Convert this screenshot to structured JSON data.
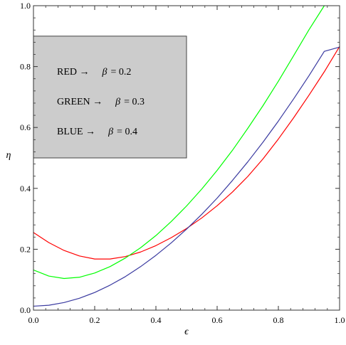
{
  "chart_data": {
    "type": "line",
    "xlabel": "ϵ",
    "ylabel": "η",
    "xlim": [
      0.0,
      1.0
    ],
    "ylim": [
      0.0,
      1.0
    ],
    "x_ticks": [
      "0.0",
      "0.2",
      "0.4",
      "0.6",
      "0.8",
      "1.0"
    ],
    "y_ticks": [
      "0.0",
      "0.2",
      "0.4",
      "0.6",
      "0.8",
      "1.0"
    ],
    "grid": false,
    "legend_box": {
      "placement": "top-left",
      "fill": "#cccccc",
      "x_range": [
        0.0,
        0.5
      ],
      "y_range": [
        0.5,
        0.9
      ],
      "entries": [
        {
          "label": "RED →",
          "param": "β",
          "eq": "= 0.2",
          "color": "#ff0000",
          "y": 0.785
        },
        {
          "label": "GREEN →",
          "param": "β",
          "eq": "=  0.3",
          "color": "#00ff00",
          "y": 0.687
        },
        {
          "label": "BLUE →",
          "param": "β",
          "eq": "= 0.4",
          "color": "#0000ff",
          "y": 0.589
        }
      ]
    },
    "series": [
      {
        "color": "#ff0000",
        "x": [
          0.0,
          0.05,
          0.1,
          0.15,
          0.2,
          0.25,
          0.3,
          0.35,
          0.4,
          0.45,
          0.5,
          0.55,
          0.6,
          0.65,
          0.7,
          0.75,
          0.8,
          0.85,
          0.9,
          0.95,
          1.0
        ],
        "y": [
          0.255,
          0.222,
          0.196,
          0.178,
          0.168,
          0.168,
          0.176,
          0.191,
          0.212,
          0.238,
          0.268,
          0.303,
          0.343,
          0.388,
          0.439,
          0.497,
          0.562,
          0.632,
          0.706,
          0.783,
          0.866
        ]
      },
      {
        "color": "#00ff00",
        "x": [
          0.0,
          0.05,
          0.1,
          0.15,
          0.2,
          0.25,
          0.3,
          0.35,
          0.4,
          0.45,
          0.5,
          0.55,
          0.6,
          0.65,
          0.7,
          0.75,
          0.8,
          0.85,
          0.9,
          0.95
        ],
        "y": [
          0.132,
          0.112,
          0.104,
          0.108,
          0.122,
          0.143,
          0.171,
          0.205,
          0.245,
          0.291,
          0.342,
          0.398,
          0.459,
          0.525,
          0.597,
          0.672,
          0.752,
          0.836,
          0.921,
          1.0
        ]
      },
      {
        "color": "#3a3aa0",
        "x": [
          0.0,
          0.05,
          0.1,
          0.15,
          0.2,
          0.25,
          0.3,
          0.35,
          0.4,
          0.45,
          0.5,
          0.55,
          0.6,
          0.65,
          0.7,
          0.75,
          0.8,
          0.85,
          0.9,
          0.95,
          1.0
        ],
        "y": [
          0.013,
          0.016,
          0.025,
          0.039,
          0.058,
          0.082,
          0.11,
          0.143,
          0.18,
          0.221,
          0.266,
          0.315,
          0.368,
          0.426,
          0.487,
          0.552,
          0.621,
          0.694,
          0.77,
          0.85,
          0.864
        ]
      }
    ]
  }
}
